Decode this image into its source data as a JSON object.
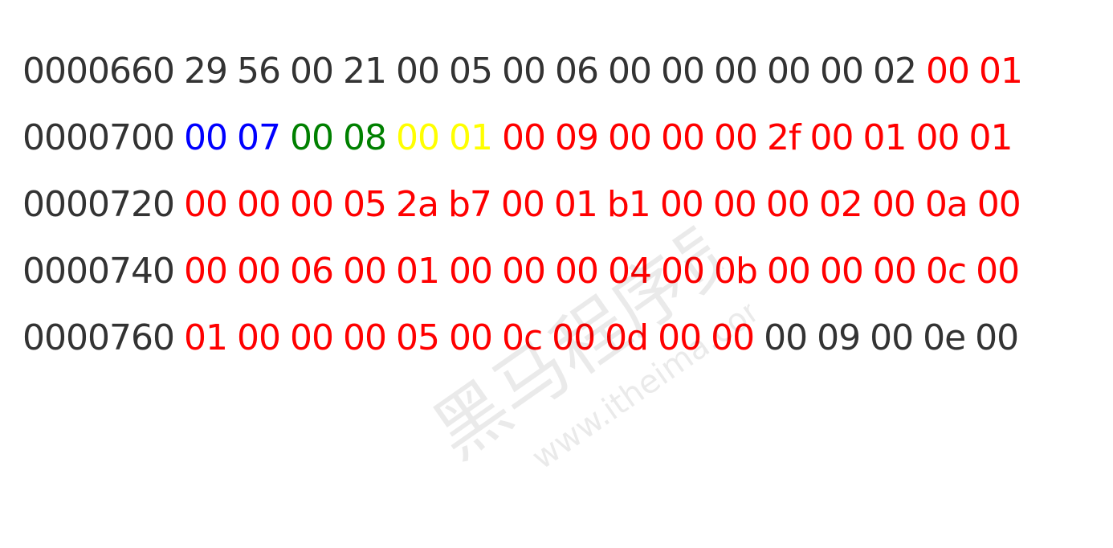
{
  "colors": {
    "default": "#333333",
    "red": "#ff0000",
    "blue": "#0000ff",
    "green": "#008000",
    "yellow": "#ffff00"
  },
  "lines": [
    {
      "address": "0000660",
      "bytes": [
        {
          "v": "29",
          "c": "default"
        },
        {
          "v": "56",
          "c": "default"
        },
        {
          "v": "00",
          "c": "default"
        },
        {
          "v": "21",
          "c": "default"
        },
        {
          "v": "00",
          "c": "default"
        },
        {
          "v": "05",
          "c": "default"
        },
        {
          "v": "00",
          "c": "default"
        },
        {
          "v": "06",
          "c": "default"
        },
        {
          "v": "00",
          "c": "default"
        },
        {
          "v": "00",
          "c": "default"
        },
        {
          "v": "00",
          "c": "default"
        },
        {
          "v": "00",
          "c": "default"
        },
        {
          "v": "00",
          "c": "default"
        },
        {
          "v": "02",
          "c": "default"
        },
        {
          "v": "00",
          "c": "red"
        },
        {
          "v": "01",
          "c": "red"
        }
      ]
    },
    {
      "address": "0000700",
      "bytes": [
        {
          "v": "00",
          "c": "blue"
        },
        {
          "v": "07",
          "c": "blue"
        },
        {
          "v": "00",
          "c": "green"
        },
        {
          "v": "08",
          "c": "green"
        },
        {
          "v": "00",
          "c": "yellow"
        },
        {
          "v": "01",
          "c": "yellow"
        },
        {
          "v": "00",
          "c": "red"
        },
        {
          "v": "09",
          "c": "red"
        },
        {
          "v": "00",
          "c": "red"
        },
        {
          "v": "00",
          "c": "red"
        },
        {
          "v": "00",
          "c": "red"
        },
        {
          "v": "2f",
          "c": "red"
        },
        {
          "v": "00",
          "c": "red"
        },
        {
          "v": "01",
          "c": "red"
        },
        {
          "v": "00",
          "c": "red"
        },
        {
          "v": "01",
          "c": "red"
        }
      ]
    },
    {
      "address": "0000720",
      "bytes": [
        {
          "v": "00",
          "c": "red"
        },
        {
          "v": "00",
          "c": "red"
        },
        {
          "v": "00",
          "c": "red"
        },
        {
          "v": "05",
          "c": "red"
        },
        {
          "v": "2a",
          "c": "red"
        },
        {
          "v": "b7",
          "c": "red"
        },
        {
          "v": "00",
          "c": "red"
        },
        {
          "v": "01",
          "c": "red"
        },
        {
          "v": "b1",
          "c": "red"
        },
        {
          "v": "00",
          "c": "red"
        },
        {
          "v": "00",
          "c": "red"
        },
        {
          "v": "00",
          "c": "red"
        },
        {
          "v": "02",
          "c": "red"
        },
        {
          "v": "00",
          "c": "red"
        },
        {
          "v": "0a",
          "c": "red"
        },
        {
          "v": "00",
          "c": "red"
        }
      ]
    },
    {
      "address": "0000740",
      "bytes": [
        {
          "v": "00",
          "c": "red"
        },
        {
          "v": "00",
          "c": "red"
        },
        {
          "v": "06",
          "c": "red"
        },
        {
          "v": "00",
          "c": "red"
        },
        {
          "v": "01",
          "c": "red"
        },
        {
          "v": "00",
          "c": "red"
        },
        {
          "v": "00",
          "c": "red"
        },
        {
          "v": "00",
          "c": "red"
        },
        {
          "v": "04",
          "c": "red"
        },
        {
          "v": "00",
          "c": "red"
        },
        {
          "v": "0b",
          "c": "red"
        },
        {
          "v": "00",
          "c": "red"
        },
        {
          "v": "00",
          "c": "red"
        },
        {
          "v": "00",
          "c": "red"
        },
        {
          "v": "0c",
          "c": "red"
        },
        {
          "v": "00",
          "c": "red"
        }
      ]
    },
    {
      "address": "0000760",
      "bytes": [
        {
          "v": "01",
          "c": "red"
        },
        {
          "v": "00",
          "c": "red"
        },
        {
          "v": "00",
          "c": "red"
        },
        {
          "v": "00",
          "c": "red"
        },
        {
          "v": "05",
          "c": "red"
        },
        {
          "v": "00",
          "c": "red"
        },
        {
          "v": "0c",
          "c": "red"
        },
        {
          "v": "00",
          "c": "red"
        },
        {
          "v": "0d",
          "c": "red"
        },
        {
          "v": "00",
          "c": "red"
        },
        {
          "v": "00",
          "c": "red"
        },
        {
          "v": "00",
          "c": "default"
        },
        {
          "v": "09",
          "c": "default"
        },
        {
          "v": "00",
          "c": "default"
        },
        {
          "v": "0e",
          "c": "default"
        },
        {
          "v": "00",
          "c": "default"
        }
      ]
    }
  ],
  "watermark": {
    "text": "黑马程序员",
    "url": "www.itheima.com",
    "icon": "watermark-logo-icon"
  }
}
